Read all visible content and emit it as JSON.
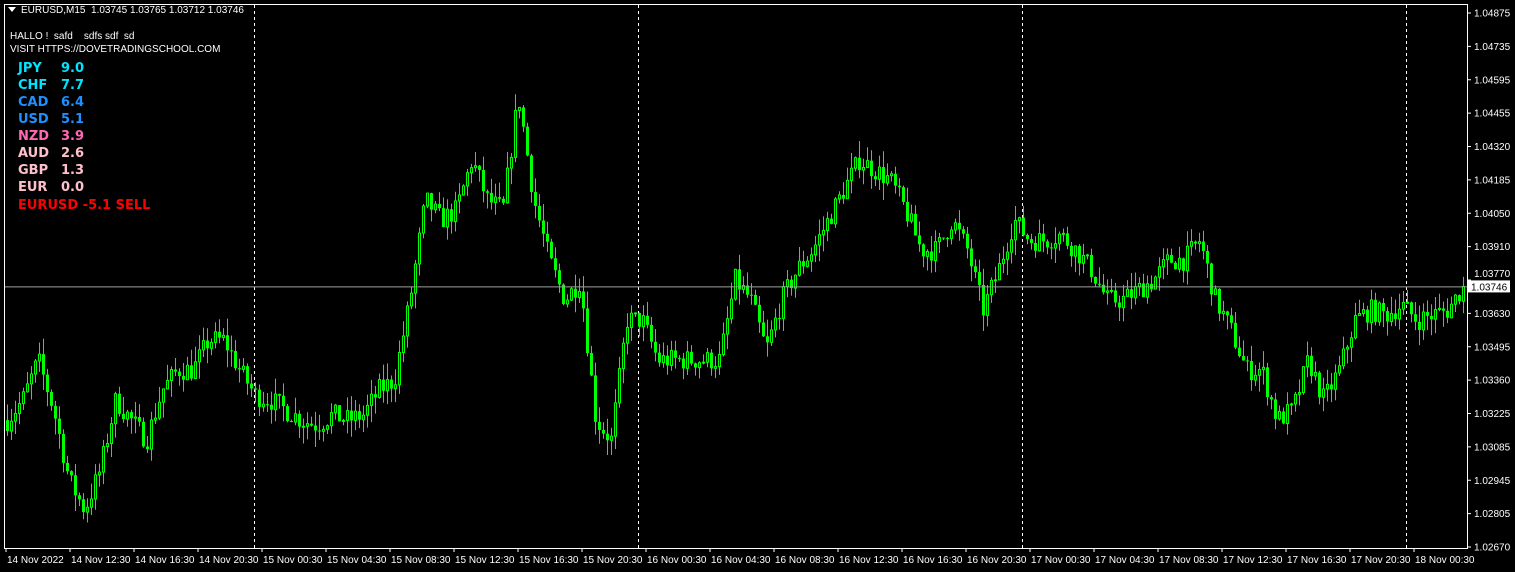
{
  "header": {
    "symbol": "EURUSD,M15",
    "ohlc": "1.03745 1.03765 1.03712 1.03746"
  },
  "messages": [
    "HALLO !  safd    sdfs sdf  sd",
    "VISIT HTTPS://DOVETRADINGSCHOOL.COM"
  ],
  "strength": [
    {
      "currency": "JPY",
      "value": "9.0",
      "color": "#00e5ff"
    },
    {
      "currency": "CHF",
      "value": "7.7",
      "color": "#00e5ff"
    },
    {
      "currency": "CAD",
      "value": "6.4",
      "color": "#1e90ff"
    },
    {
      "currency": "USD",
      "value": "5.1",
      "color": "#1e90ff"
    },
    {
      "currency": "NZD",
      "value": "3.9",
      "color": "#ff69b4"
    },
    {
      "currency": "AUD",
      "value": "2.6",
      "color": "#ffc0cb"
    },
    {
      "currency": "GBP",
      "value": "1.3",
      "color": "#ffc0cb"
    },
    {
      "currency": "EUR",
      "value": "0.0",
      "color": "#ffc0cb"
    }
  ],
  "signal": {
    "text": "EURUSD -5.1 SELL",
    "color": "#ff0000"
  },
  "chart_data": {
    "type": "candlestick",
    "symbol": "EURUSD",
    "timeframe": "M15",
    "candle_color": "#00ff00",
    "background": "#000000",
    "ylim": [
      1.0267,
      1.04875
    ],
    "price_ticks": [
      "1.04875",
      "1.04735",
      "1.04595",
      "1.04455",
      "1.04320",
      "1.04185",
      "1.04050",
      "1.03910",
      "1.03770",
      "1.03630",
      "1.03495",
      "1.03360",
      "1.03225",
      "1.03085",
      "1.02945",
      "1.02805",
      "1.02670"
    ],
    "time_ticks": [
      "14 Nov 2022",
      "14 Nov 12:30",
      "14 Nov 16:30",
      "14 Nov 20:30",
      "15 Nov 00:30",
      "15 Nov 04:30",
      "15 Nov 08:30",
      "15 Nov 12:30",
      "15 Nov 16:30",
      "15 Nov 20:30",
      "16 Nov 00:30",
      "16 Nov 04:30",
      "16 Nov 08:30",
      "16 Nov 12:30",
      "16 Nov 16:30",
      "16 Nov 20:30",
      "17 Nov 00:30",
      "17 Nov 04:30",
      "17 Nov 08:30",
      "17 Nov 12:30",
      "17 Nov 16:30",
      "17 Nov 20:30",
      "18 Nov 00:30"
    ],
    "day_separators": [
      "15 Nov",
      "16 Nov",
      "17 Nov",
      "18 Nov"
    ],
    "bid_price": "1.03746",
    "hourly_close_approx": [
      1.03194,
      1.03277,
      1.03442,
      1.03235,
      1.02946,
      1.02822,
      1.02988,
      1.03277,
      1.03194,
      1.03111,
      1.03318,
      1.03401,
      1.03401,
      1.03524,
      1.03524,
      1.03401,
      1.03297,
      1.03277,
      1.03235,
      1.03194,
      1.03173,
      1.03215,
      1.03194,
      1.03215,
      1.03318,
      1.03359,
      1.0369,
      1.04103,
      1.0402,
      1.04061,
      1.04268,
      1.04103,
      1.04061,
      1.04536,
      1.04103,
      1.03855,
      1.0369,
      1.03772,
      1.03194,
      1.03111,
      1.03607,
      1.03607,
      1.03442,
      1.03442,
      1.03442,
      1.03442,
      1.03442,
      1.03772,
      1.0369,
      1.03483,
      1.0369,
      1.03814,
      1.03896,
      1.0402,
      1.04144,
      1.04268,
      1.04227,
      1.04185,
      1.04061,
      1.03896,
      1.03896,
      1.0402,
      1.03896,
      1.03648,
      1.03814,
      1.0402,
      1.03937,
      1.03937,
      1.03958,
      1.03896,
      1.03814,
      1.0369,
      1.0369,
      1.03731,
      1.03772,
      1.03855,
      1.03855,
      1.03937,
      1.0369,
      1.03566,
      1.03401,
      1.03401,
      1.03194,
      1.03235,
      1.03442,
      1.03277,
      1.03401,
      1.03607,
      1.03648,
      1.03628,
      1.03669,
      1.03607,
      1.03628,
      1.03648,
      1.03746
    ]
  }
}
